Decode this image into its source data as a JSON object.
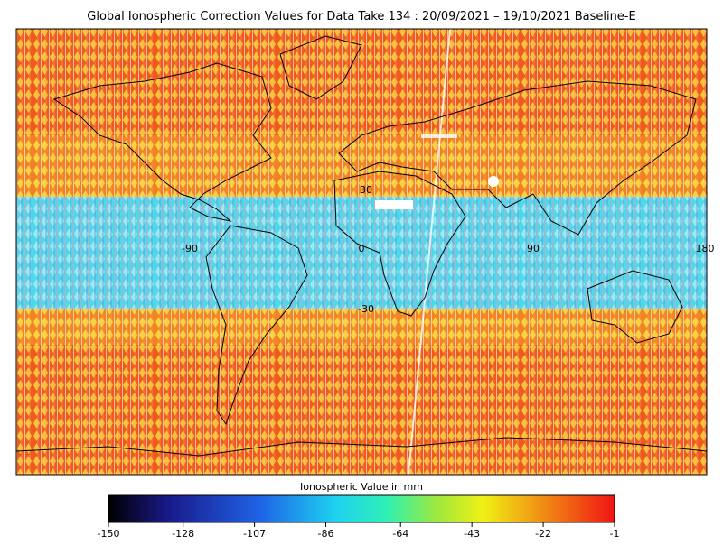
{
  "header": {
    "title": "Global Ionospheric Correction Values for Data Take 134 : 20/09/2021 – 19/10/2021 Baseline-E"
  },
  "map": {
    "latitude_labels": [
      30,
      -30
    ],
    "longitude_labels": [
      -90,
      0,
      90,
      180
    ]
  },
  "colorbar": {
    "label": "Ionospheric Value in mm",
    "range": [
      -150,
      -1
    ],
    "ticks": [
      -150,
      -128,
      -107,
      -86,
      -64,
      -43,
      -22,
      -1
    ]
  }
}
